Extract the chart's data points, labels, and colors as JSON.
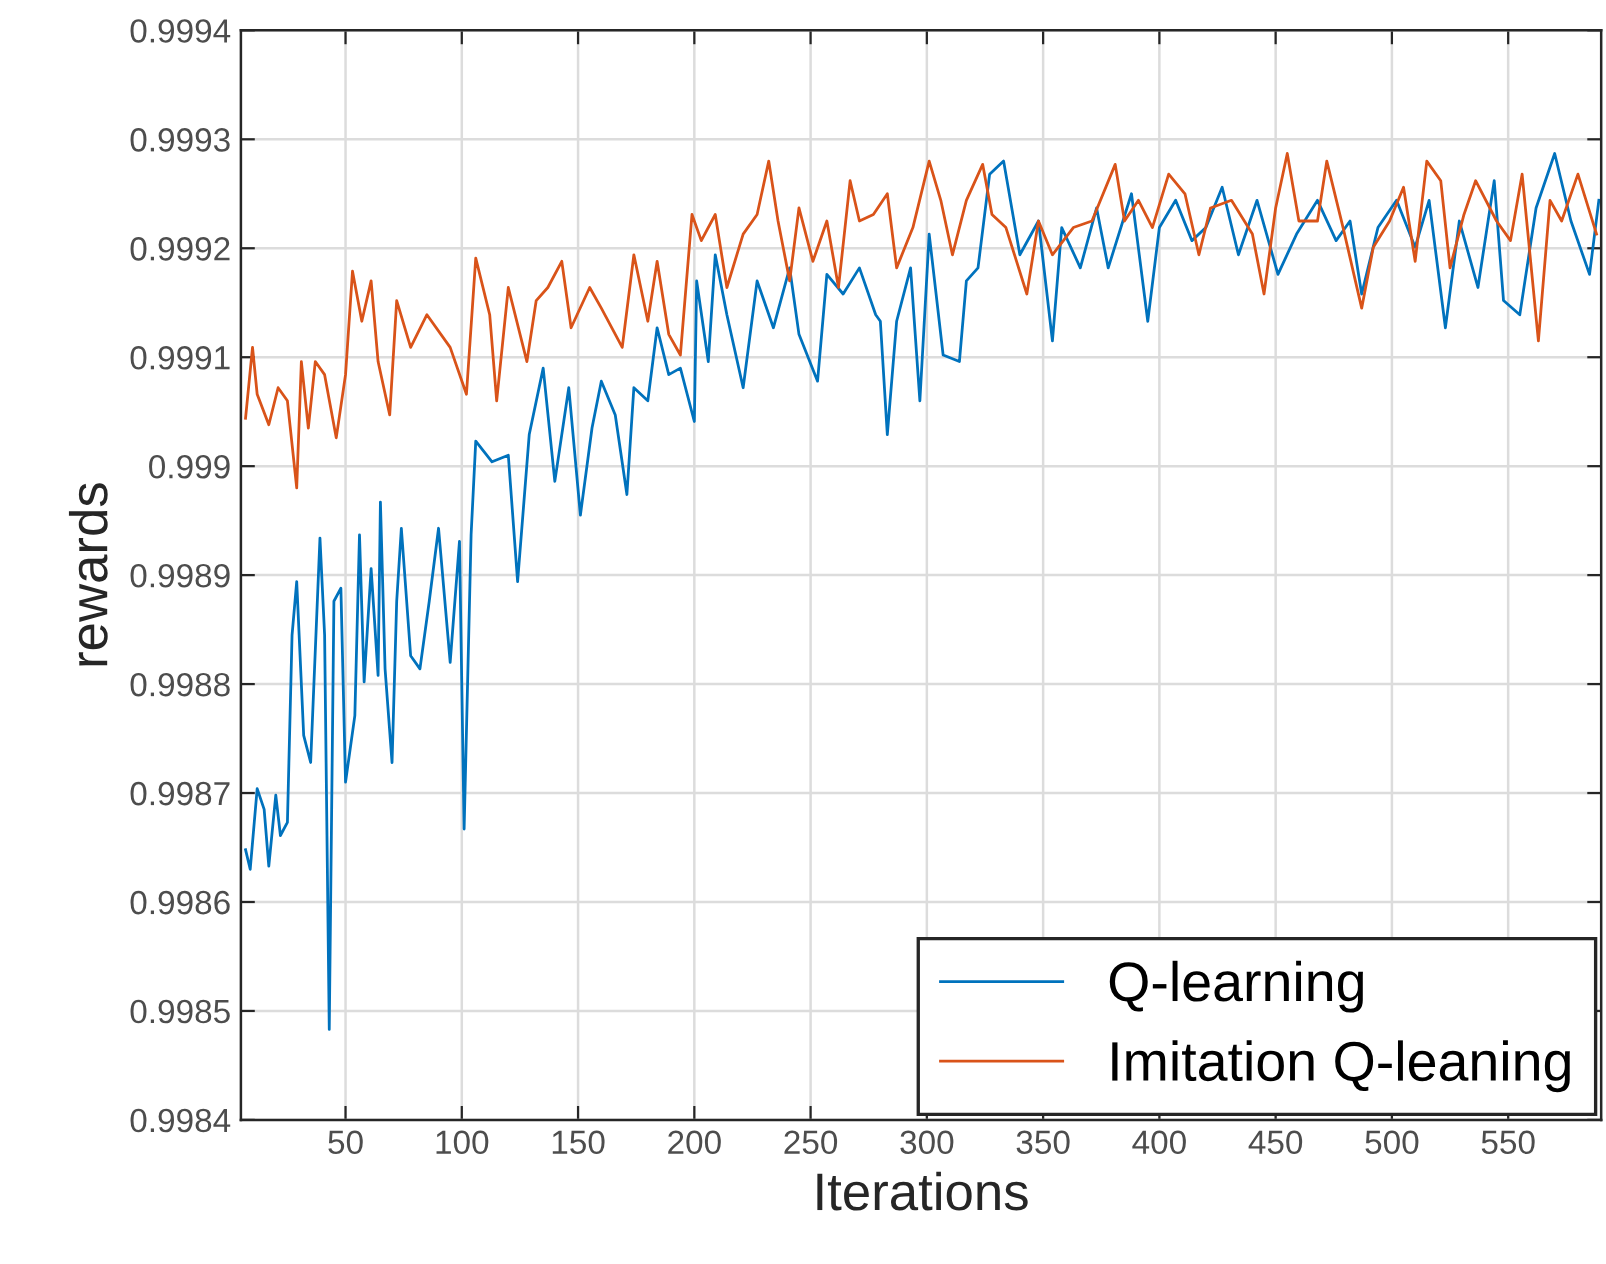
{
  "chart_data": {
    "type": "line",
    "xlabel": "Iterations",
    "ylabel": "rewards",
    "xlim": [
      5,
      590
    ],
    "xticks": [
      50,
      100,
      150,
      200,
      250,
      300,
      350,
      400,
      450,
      500,
      550
    ],
    "ylim": [
      0.9984,
      0.9994
    ],
    "yticks": [
      0.9984,
      0.9985,
      0.9986,
      0.9987,
      0.9988,
      0.9989,
      0.999,
      0.9991,
      0.9992,
      0.9993,
      0.9994
    ],
    "grid": true,
    "legend": "bottom right",
    "line_style": "solid",
    "marker": "none",
    "series": [
      {
        "name": "Q-learning",
        "color": "#0072bd",
        "x": [
          7,
          9,
          12,
          15,
          17,
          20,
          22,
          25,
          27,
          29,
          32,
          35,
          39,
          41,
          43,
          45,
          48,
          50,
          54,
          56,
          58,
          61,
          64,
          65,
          67,
          70,
          72,
          74,
          78,
          82,
          86,
          90,
          95,
          99,
          101,
          104,
          106,
          113,
          120,
          124,
          129,
          135,
          140,
          146,
          151,
          156,
          160,
          166,
          171,
          174,
          180,
          184,
          189,
          194,
          200,
          201,
          206,
          209,
          214,
          221,
          227,
          234,
          241,
          245,
          253,
          257,
          264,
          271,
          278,
          280,
          283,
          287,
          293,
          297,
          301,
          307,
          314,
          317,
          322,
          327,
          333,
          340,
          348,
          354,
          358,
          366,
          373,
          378,
          388,
          395,
          400,
          407,
          414,
          420,
          427,
          434,
          442,
          451,
          459,
          468,
          476,
          482,
          487,
          494,
          502,
          510,
          516,
          523,
          529,
          537,
          544,
          548,
          555,
          562,
          570,
          577,
          585,
          589
        ],
        "values": [
          0.998648,
          0.99863,
          0.998704,
          0.998685,
          0.998633,
          0.998698,
          0.998661,
          0.998673,
          0.998845,
          0.998894,
          0.998753,
          0.998728,
          0.998934,
          0.998845,
          0.998483,
          0.998876,
          0.998888,
          0.99871,
          0.998771,
          0.998937,
          0.998802,
          0.998906,
          0.998808,
          0.998967,
          0.998814,
          0.998728,
          0.998876,
          0.998943,
          0.998826,
          0.998814,
          0.998876,
          0.998943,
          0.99882,
          0.998931,
          0.998667,
          0.998937,
          0.999023,
          0.999004,
          0.99901,
          0.998894,
          0.999029,
          0.99909,
          0.998986,
          0.999072,
          0.998955,
          0.999035,
          0.999078,
          0.999047,
          0.998974,
          0.999072,
          0.99906,
          0.999127,
          0.999084,
          0.99909,
          0.999041,
          0.99917,
          0.999096,
          0.999194,
          0.999139,
          0.999072,
          0.99917,
          0.999127,
          0.999182,
          0.999121,
          0.999078,
          0.999176,
          0.999158,
          0.999182,
          0.999139,
          0.999133,
          0.999029,
          0.999133,
          0.999182,
          0.99906,
          0.999213,
          0.999102,
          0.999096,
          0.99917,
          0.999182,
          0.999268,
          0.99928,
          0.999194,
          0.999225,
          0.999115,
          0.999219,
          0.999182,
          0.999237,
          0.999182,
          0.99925,
          0.999133,
          0.999219,
          0.999244,
          0.999207,
          0.999219,
          0.999256,
          0.999194,
          0.999244,
          0.999176,
          0.999213,
          0.999244,
          0.999207,
          0.999225,
          0.999158,
          0.999219,
          0.999244,
          0.999201,
          0.999244,
          0.999127,
          0.999225,
          0.999164,
          0.999262,
          0.999152,
          0.999139,
          0.999237,
          0.999287,
          0.999225,
          0.999176,
          0.999244
        ]
      },
      {
        "name": "Imitation Q-leaning",
        "color": "#d95319",
        "x": [
          7,
          10,
          12,
          17,
          21,
          25,
          29,
          31,
          34,
          37,
          41,
          46,
          50,
          53,
          57,
          61,
          64,
          69,
          72,
          78,
          85,
          95,
          102,
          106,
          112,
          115,
          120,
          128,
          132,
          137,
          143,
          147,
          155,
          160,
          169,
          174,
          180,
          184,
          189,
          194,
          199,
          203,
          209,
          214,
          221,
          227,
          232,
          236,
          241,
          245,
          251,
          257,
          262,
          267,
          271,
          277,
          283,
          287,
          294,
          301,
          306,
          311,
          317,
          324,
          328,
          334,
          343,
          348,
          354,
          363,
          371,
          381,
          385,
          391,
          397,
          404,
          411,
          417,
          422,
          431,
          440,
          445,
          450,
          455,
          460,
          468,
          472,
          479,
          487,
          492,
          499,
          505,
          510,
          515,
          521,
          525,
          531,
          536,
          545,
          551,
          556,
          563,
          568,
          573,
          580,
          588
        ],
        "values": [
          0.999044,
          0.999109,
          0.999066,
          0.999038,
          0.999072,
          0.99906,
          0.99898,
          0.999096,
          0.999035,
          0.999096,
          0.999084,
          0.999026,
          0.999084,
          0.999179,
          0.999133,
          0.99917,
          0.999096,
          0.999047,
          0.999152,
          0.999109,
          0.999139,
          0.999109,
          0.999066,
          0.999191,
          0.999139,
          0.99906,
          0.999164,
          0.999096,
          0.999152,
          0.999164,
          0.999188,
          0.999127,
          0.999164,
          0.999145,
          0.999109,
          0.999194,
          0.999133,
          0.999188,
          0.999121,
          0.999102,
          0.999231,
          0.999207,
          0.999231,
          0.999164,
          0.999213,
          0.999231,
          0.99928,
          0.999225,
          0.99917,
          0.999237,
          0.999188,
          0.999225,
          0.999164,
          0.999262,
          0.999225,
          0.999231,
          0.99925,
          0.999182,
          0.999219,
          0.99928,
          0.999244,
          0.999194,
          0.999244,
          0.999277,
          0.999231,
          0.999219,
          0.999158,
          0.999225,
          0.999194,
          0.999219,
          0.999225,
          0.999277,
          0.999225,
          0.999244,
          0.999219,
          0.999268,
          0.99925,
          0.999194,
          0.999237,
          0.999244,
          0.999213,
          0.999158,
          0.999237,
          0.999287,
          0.999225,
          0.999225,
          0.99928,
          0.999219,
          0.999145,
          0.999201,
          0.999225,
          0.999256,
          0.999188,
          0.99928,
          0.999262,
          0.999182,
          0.999231,
          0.999262,
          0.999225,
          0.999207,
          0.999268,
          0.999115,
          0.999244,
          0.999225,
          0.999268,
          0.999213
        ]
      }
    ]
  }
}
